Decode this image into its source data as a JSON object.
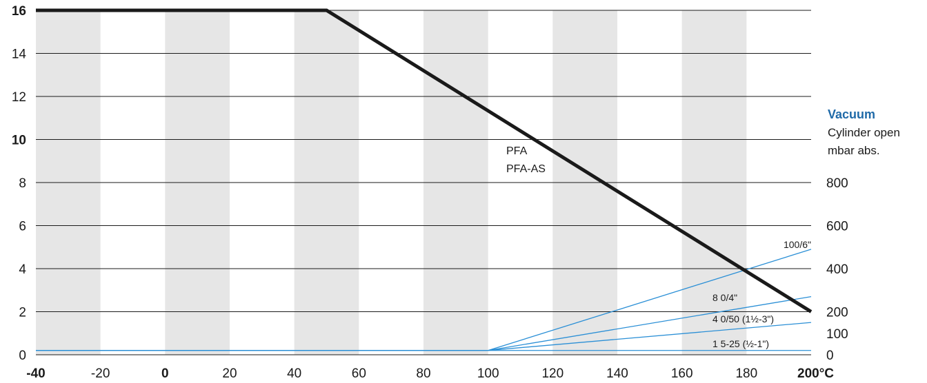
{
  "chart_data": {
    "type": "line",
    "x_ticks": [
      "-40",
      "-20",
      "0",
      "20",
      "40",
      "60",
      "80",
      "100",
      "120",
      "140",
      "160",
      "180",
      "200°C"
    ],
    "x_bold_ticks": [
      "-40",
      "0",
      "200°C"
    ],
    "xlim": [
      -40,
      200
    ],
    "y_ticks": [
      "0",
      "2",
      "4",
      "6",
      "8",
      "10",
      "12",
      "14",
      "16"
    ],
    "y_bold_ticks": [
      "10",
      "16"
    ],
    "ylim": [
      0,
      16
    ],
    "y2_ticks": [
      "0",
      "100",
      "200",
      "400",
      "600",
      "800"
    ],
    "y2_tick_positions": [
      0,
      1,
      2,
      4,
      6,
      8
    ],
    "shaded_bands": [
      [
        -40,
        -20
      ],
      [
        0,
        20
      ],
      [
        40,
        60
      ],
      [
        80,
        100
      ],
      [
        120,
        140
      ],
      [
        160,
        180
      ]
    ],
    "series": [
      {
        "labels": [
          "PFA",
          "PFA-AS"
        ],
        "x": [
          -40,
          50,
          200
        ],
        "y": [
          16,
          16,
          2
        ]
      },
      {
        "labels": [
          "100/6\""
        ],
        "x": [
          -40,
          100,
          200
        ],
        "y": [
          0.2,
          0.2,
          4.9
        ]
      },
      {
        "labels": [
          "8 0/4\""
        ],
        "x": [
          -40,
          100,
          200
        ],
        "y": [
          0.2,
          0.2,
          2.7
        ]
      },
      {
        "labels": [
          "4 0/50 (1½-3\")"
        ],
        "x": [
          -40,
          100,
          200
        ],
        "y": [
          0.2,
          0.2,
          1.5
        ]
      },
      {
        "labels": [
          "1 5-25 (½-1\")"
        ],
        "x": [
          -40,
          100,
          200
        ],
        "y": [
          0.2,
          0.2,
          0.2
        ]
      }
    ],
    "vacuum_axis": {
      "title": "Vacuum",
      "line1": "Cylinder open",
      "line2": "mbar abs."
    }
  },
  "colors": {
    "band": "#e6e6e6",
    "grid": "#1a1a1a",
    "main_line": "#1a1a1a",
    "vacuum_lines": "#2a8fd6",
    "vacuum_title": "#1f6aa8"
  }
}
